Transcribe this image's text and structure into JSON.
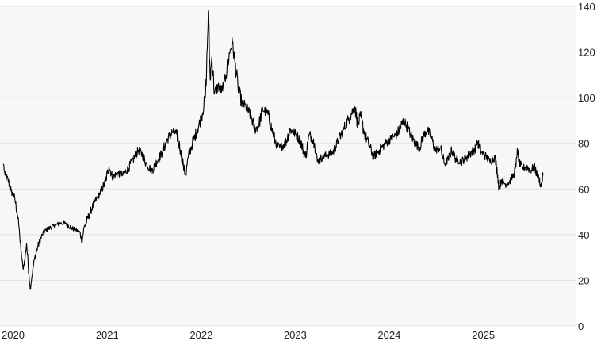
{
  "colors": {
    "plot_background": "#f7f7f7",
    "gridline": "#e2e2e2",
    "line": "#000000",
    "text": "#222222"
  },
  "chart_data": {
    "type": "line",
    "title": "",
    "xlabel": "",
    "ylabel": "",
    "grid": "horizontal",
    "yaxis_side": "right",
    "ylim": [
      0,
      140
    ],
    "xlim": [
      "2020-01-01",
      "2025-10-01"
    ],
    "x_ticks": [
      {
        "label": "2020",
        "date": "2020-01-01"
      },
      {
        "label": "2021",
        "date": "2021-01-01"
      },
      {
        "label": "2022",
        "date": "2022-01-01"
      },
      {
        "label": "2023",
        "date": "2023-01-01"
      },
      {
        "label": "2024",
        "date": "2024-01-01"
      },
      {
        "label": "2025",
        "date": "2025-01-01"
      }
    ],
    "y_ticks": [
      0,
      20,
      40,
      60,
      80,
      100,
      120,
      140
    ],
    "series": [
      {
        "points": [
          [
            "2020-01-02",
            71
          ],
          [
            "2020-01-08",
            66
          ],
          [
            "2020-01-20",
            64
          ],
          [
            "2020-02-01",
            59
          ],
          [
            "2020-02-15",
            56
          ],
          [
            "2020-02-25",
            49
          ],
          [
            "2020-03-01",
            45
          ],
          [
            "2020-03-05",
            40
          ],
          [
            "2020-03-10",
            33
          ],
          [
            "2020-03-18",
            25
          ],
          [
            "2020-03-25",
            29
          ],
          [
            "2020-04-01",
            36
          ],
          [
            "2020-04-10",
            23
          ],
          [
            "2020-04-15",
            16
          ],
          [
            "2020-04-22",
            22
          ],
          [
            "2020-05-01",
            29
          ],
          [
            "2020-05-15",
            35
          ],
          [
            "2020-06-01",
            40
          ],
          [
            "2020-06-15",
            42
          ],
          [
            "2020-07-01",
            43
          ],
          [
            "2020-07-20",
            44
          ],
          [
            "2020-08-10",
            45
          ],
          [
            "2020-09-01",
            45
          ],
          [
            "2020-09-20",
            43
          ],
          [
            "2020-10-10",
            42
          ],
          [
            "2020-10-25",
            41
          ],
          [
            "2020-11-02",
            37
          ],
          [
            "2020-11-10",
            43
          ],
          [
            "2020-12-01",
            49
          ],
          [
            "2020-12-20",
            54
          ],
          [
            "2021-01-10",
            58
          ],
          [
            "2021-02-01",
            63
          ],
          [
            "2021-02-15",
            70
          ],
          [
            "2021-03-01",
            65
          ],
          [
            "2021-03-20",
            67
          ],
          [
            "2021-04-10",
            66
          ],
          [
            "2021-05-01",
            69
          ],
          [
            "2021-05-20",
            73
          ],
          [
            "2021-06-10",
            77
          ],
          [
            "2021-06-25",
            75
          ],
          [
            "2021-07-10",
            71
          ],
          [
            "2021-08-01",
            68
          ],
          [
            "2021-08-20",
            72
          ],
          [
            "2021-09-10",
            76
          ],
          [
            "2021-10-01",
            82
          ],
          [
            "2021-10-20",
            85
          ],
          [
            "2021-11-05",
            84
          ],
          [
            "2021-11-20",
            77
          ],
          [
            "2021-12-01",
            70
          ],
          [
            "2021-12-10",
            66
          ],
          [
            "2021-12-20",
            74
          ],
          [
            "2022-01-05",
            80
          ],
          [
            "2022-01-25",
            86
          ],
          [
            "2022-02-10",
            92
          ],
          [
            "2022-02-24",
            100
          ],
          [
            "2022-03-01",
            111
          ],
          [
            "2022-03-08",
            138
          ],
          [
            "2022-03-15",
            108
          ],
          [
            "2022-03-22",
            118
          ],
          [
            "2022-04-01",
            102
          ],
          [
            "2022-04-15",
            105
          ],
          [
            "2022-05-01",
            103
          ],
          [
            "2022-05-15",
            110
          ],
          [
            "2022-06-01",
            121
          ],
          [
            "2022-06-10",
            124
          ],
          [
            "2022-06-20",
            115
          ],
          [
            "2022-07-01",
            105
          ],
          [
            "2022-07-15",
            98
          ],
          [
            "2022-08-01",
            96
          ],
          [
            "2022-08-20",
            92
          ],
          [
            "2022-09-05",
            86
          ],
          [
            "2022-09-20",
            88
          ],
          [
            "2022-10-05",
            95
          ],
          [
            "2022-10-25",
            93
          ],
          [
            "2022-11-10",
            86
          ],
          [
            "2022-11-25",
            80
          ],
          [
            "2022-12-10",
            78
          ],
          [
            "2023-01-01",
            80
          ],
          [
            "2023-01-20",
            86
          ],
          [
            "2023-02-10",
            84
          ],
          [
            "2023-03-01",
            81
          ],
          [
            "2023-03-20",
            74
          ],
          [
            "2023-04-05",
            84
          ],
          [
            "2023-04-25",
            80
          ],
          [
            "2023-05-05",
            72
          ],
          [
            "2023-05-25",
            74
          ],
          [
            "2023-06-15",
            75
          ],
          [
            "2023-07-05",
            76
          ],
          [
            "2023-07-25",
            81
          ],
          [
            "2023-08-15",
            86
          ],
          [
            "2023-09-05",
            91
          ],
          [
            "2023-09-28",
            96
          ],
          [
            "2023-10-10",
            88
          ],
          [
            "2023-10-20",
            92
          ],
          [
            "2023-11-05",
            84
          ],
          [
            "2023-11-20",
            80
          ],
          [
            "2023-12-10",
            74
          ],
          [
            "2024-01-01",
            77
          ],
          [
            "2024-01-25",
            80
          ],
          [
            "2024-02-15",
            82
          ],
          [
            "2024-03-10",
            84
          ],
          [
            "2024-04-05",
            90
          ],
          [
            "2024-04-15",
            88
          ],
          [
            "2024-05-01",
            84
          ],
          [
            "2024-05-20",
            80
          ],
          [
            "2024-06-05",
            78
          ],
          [
            "2024-06-20",
            83
          ],
          [
            "2024-07-05",
            86
          ],
          [
            "2024-07-20",
            83
          ],
          [
            "2024-08-05",
            77
          ],
          [
            "2024-08-25",
            78
          ],
          [
            "2024-09-10",
            71
          ],
          [
            "2024-09-25",
            73
          ],
          [
            "2024-10-08",
            77
          ],
          [
            "2024-10-25",
            73
          ],
          [
            "2024-11-15",
            72
          ],
          [
            "2024-12-05",
            74
          ],
          [
            "2025-01-10",
            78
          ],
          [
            "2025-01-15",
            81
          ],
          [
            "2025-02-01",
            76
          ],
          [
            "2025-02-20",
            74
          ],
          [
            "2025-03-05",
            72
          ],
          [
            "2025-03-25",
            74
          ],
          [
            "2025-04-05",
            66
          ],
          [
            "2025-04-10",
            60
          ],
          [
            "2025-04-20",
            64
          ],
          [
            "2025-05-05",
            62
          ],
          [
            "2025-05-20",
            63
          ],
          [
            "2025-06-05",
            66
          ],
          [
            "2025-06-15",
            70
          ],
          [
            "2025-06-20",
            78
          ],
          [
            "2025-06-25",
            72
          ],
          [
            "2025-07-10",
            69
          ],
          [
            "2025-07-25",
            70
          ],
          [
            "2025-08-10",
            68
          ],
          [
            "2025-08-25",
            70
          ],
          [
            "2025-09-05",
            66
          ],
          [
            "2025-09-12",
            65
          ],
          [
            "2025-09-20",
            61
          ],
          [
            "2025-09-28",
            66
          ]
        ]
      }
    ]
  }
}
